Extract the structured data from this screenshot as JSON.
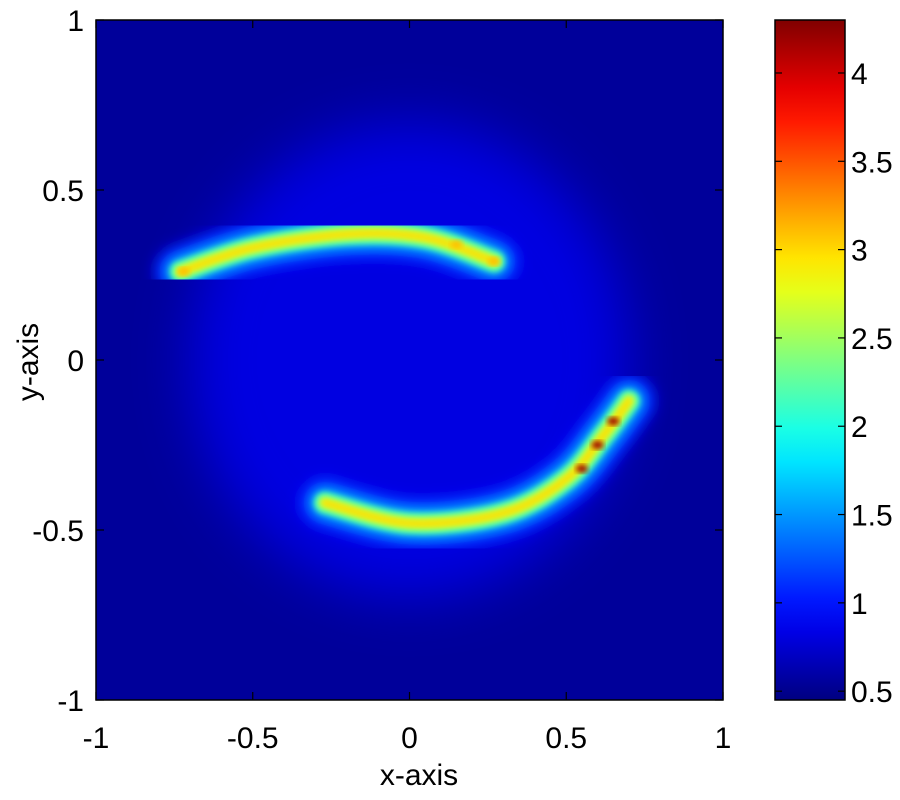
{
  "chart_data": {
    "type": "heatmap",
    "title": "",
    "xlabel": "x-axis",
    "ylabel": "y-axis",
    "xlim": [
      -1,
      1
    ],
    "ylim": [
      -1,
      1
    ],
    "xticks": [
      -1,
      -0.5,
      0,
      0.5,
      1
    ],
    "yticks": [
      -1,
      -0.5,
      0,
      0.5,
      1
    ],
    "xtick_labels": [
      "-1",
      "-0.5",
      "0",
      "0.5",
      "1"
    ],
    "ytick_labels": [
      "-1",
      "-0.5",
      "0",
      "0.5",
      "1"
    ],
    "colormap": "jet",
    "grid": false,
    "colorbar": {
      "range": [
        0.45,
        4.3
      ],
      "ticks": [
        0.5,
        1,
        1.5,
        2,
        2.5,
        3,
        3.5,
        4
      ],
      "tick_labels": [
        "0.5",
        "1",
        "1.5",
        "2",
        "2.5",
        "3",
        "3.5",
        "4"
      ],
      "placement": "right"
    },
    "background_value": 0.55,
    "halo": {
      "center": [
        0.0,
        0.0
      ],
      "radius": 0.7,
      "value": 0.85
    },
    "features": [
      {
        "name": "upper-arc",
        "points": [
          [
            -0.73,
            0.26
          ],
          [
            -0.5,
            0.33
          ],
          [
            -0.2,
            0.37
          ],
          [
            0.05,
            0.36
          ],
          [
            0.27,
            0.29
          ]
        ],
        "peak_value": 3.1,
        "hot_spots": [
          [
            -0.72,
            0.26
          ],
          [
            0.27,
            0.29
          ],
          [
            0.15,
            0.34
          ]
        ]
      },
      {
        "name": "lower-arc",
        "points": [
          [
            -0.27,
            -0.42
          ],
          [
            0.0,
            -0.48
          ],
          [
            0.3,
            -0.45
          ],
          [
            0.5,
            -0.35
          ],
          [
            0.62,
            -0.22
          ],
          [
            0.7,
            -0.12
          ]
        ],
        "peak_value": 4.2,
        "hot_spots": [
          [
            0.6,
            -0.25
          ],
          [
            0.65,
            -0.18
          ],
          [
            0.55,
            -0.32
          ]
        ]
      }
    ]
  }
}
